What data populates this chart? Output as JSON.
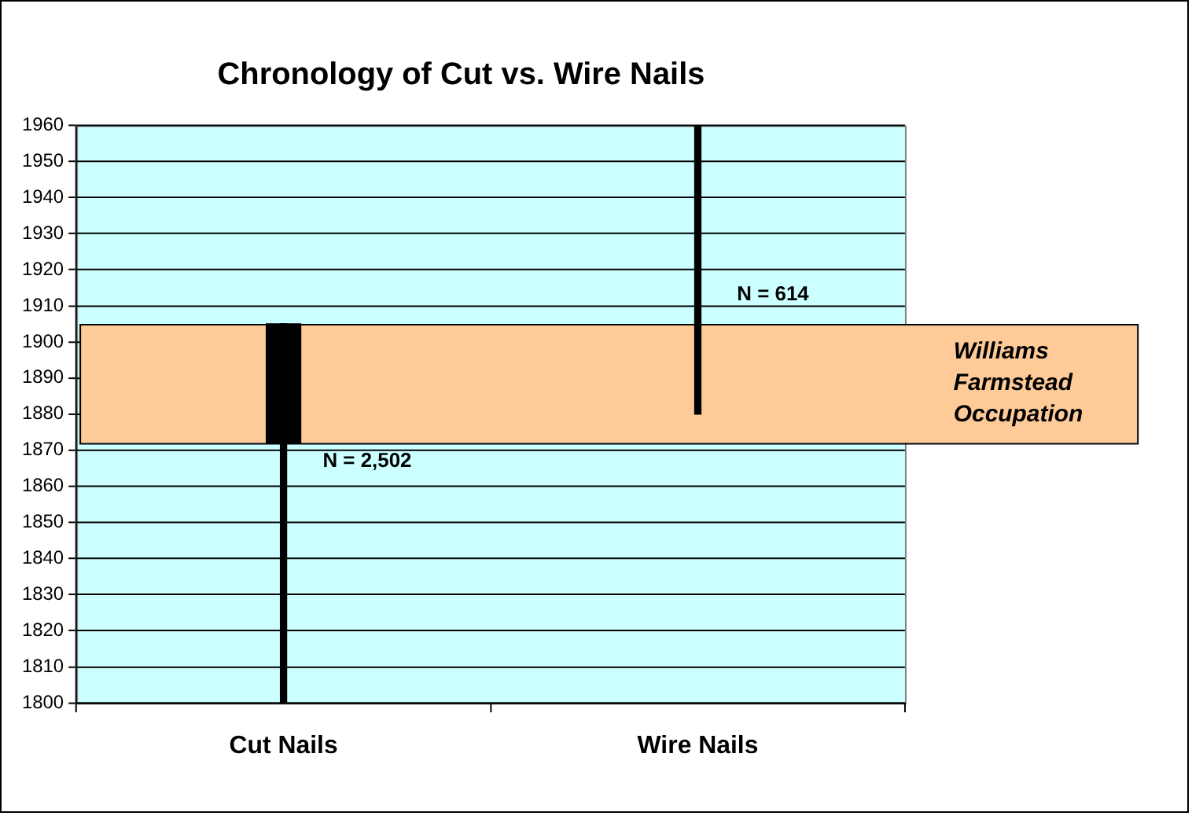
{
  "chart_data": {
    "type": "bar",
    "title": "Chronology of Cut vs. Wire Nails",
    "categories": [
      "Cut Nails",
      "Wire Nails"
    ],
    "series": [
      {
        "color": "#000000",
        "base": [
          1800,
          1880
        ],
        "values": [
          105,
          80
        ]
      },
      {
        "color": "#000000",
        "base": [
          1872,
          null
        ],
        "values": [
          33,
          null
        ]
      }
    ],
    "ylim": [
      1800,
      1960
    ],
    "yticks": [
      1800,
      1810,
      1820,
      1830,
      1840,
      1850,
      1860,
      1870,
      1880,
      1890,
      1900,
      1910,
      1920,
      1930,
      1940,
      1950,
      1960
    ],
    "grid": "y",
    "legend": false,
    "bands": [
      {
        "axis": "y",
        "from": 1872,
        "to": 1905,
        "label": "Williams\nFarmstead\nOccupation",
        "color": "#fdca98"
      }
    ],
    "annotations": [
      {
        "text": "N = 2,502",
        "x": "Cut Nails",
        "y": 1867
      },
      {
        "text": "N = 614",
        "x": "Wire Nails",
        "y": 1913
      }
    ]
  }
}
